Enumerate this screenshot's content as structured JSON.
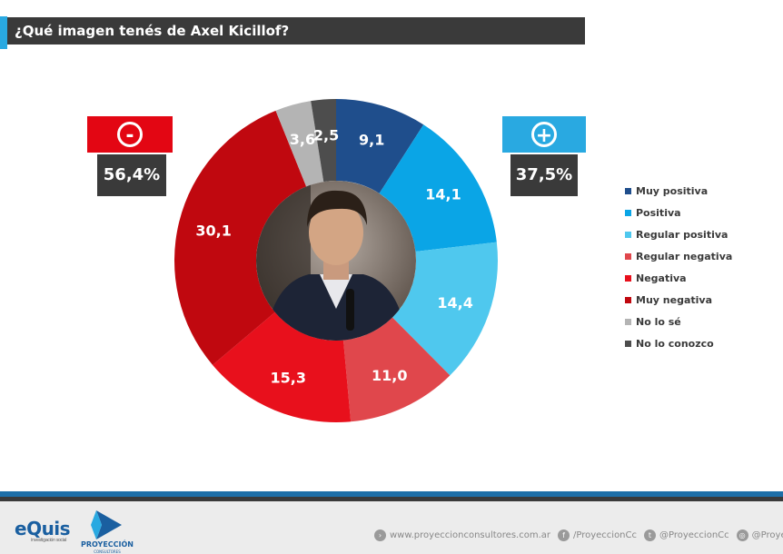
{
  "title": "¿Qué imagen tenés de Axel Kicillof?",
  "negative_block": {
    "symbol": "-",
    "percent": "56,4%",
    "color": "#e30613"
  },
  "positive_block": {
    "symbol": "+",
    "percent": "37,5%",
    "color": "#29a9e1"
  },
  "chart_data": {
    "type": "pie",
    "donut": true,
    "title": "¿Qué imagen tenés de Axel Kicillof?",
    "categories": [
      "Muy positiva",
      "Positiva",
      "Regular positiva",
      "Regular negativa",
      "Negativa",
      "Muy negativa",
      "No lo sé",
      "No lo conozco"
    ],
    "values": [
      9.1,
      14.1,
      14.4,
      11.0,
      15.3,
      30.1,
      3.6,
      2.5
    ],
    "labels": [
      "9,1",
      "14,1",
      "14,4",
      "11,0",
      "15,3",
      "30,1",
      "3,6",
      "2,5"
    ],
    "colors": [
      "#1f4e8c",
      "#0aa5e6",
      "#4fc8ee",
      "#e0474c",
      "#e8101c",
      "#c0080f",
      "#b4b4b4",
      "#4d4d4d"
    ],
    "legend_position": "right",
    "center_image": "portrait"
  },
  "footer": {
    "logo1": {
      "name": "eQuis",
      "sub": "investigación social"
    },
    "logo2": {
      "name": "PROYECCIÓN",
      "sub": "CONSULTORES"
    },
    "socials": [
      {
        "icon": "web-icon",
        "text": "www.proyeccionconsultores.com.ar"
      },
      {
        "icon": "facebook-icon",
        "text": "/ProyeccionCc"
      },
      {
        "icon": "twitter-icon",
        "text": "@ProyeccionCc"
      },
      {
        "icon": "instagram-icon",
        "text": "@ProyeccionCc"
      }
    ]
  }
}
